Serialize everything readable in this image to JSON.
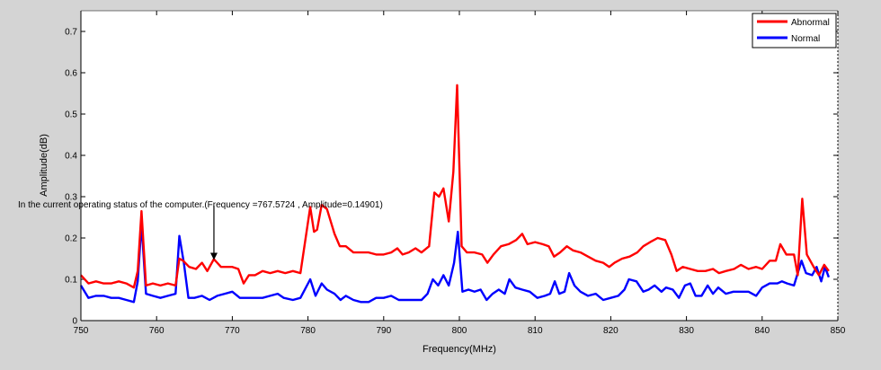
{
  "chart_data": {
    "type": "line",
    "xlabel": "Frequency(MHz)",
    "ylabel": "Amplitude(dB)",
    "xlim": [
      750,
      850
    ],
    "ylim": [
      0,
      0.75
    ],
    "xticks": [
      750,
      760,
      770,
      780,
      790,
      800,
      810,
      820,
      830,
      840,
      850
    ],
    "yticks": [
      0,
      0.1,
      0.2,
      0.3,
      0.4,
      0.5,
      0.6,
      0.7
    ],
    "legend": {
      "placement": "top-right"
    },
    "grid": false,
    "series": [
      {
        "name": "Abnormal",
        "color": "#ff0000",
        "points": [
          [
            750,
            0.11
          ],
          [
            751,
            0.09
          ],
          [
            752,
            0.095
          ],
          [
            753,
            0.09
          ],
          [
            754,
            0.09
          ],
          [
            755,
            0.095
          ],
          [
            756,
            0.09
          ],
          [
            757,
            0.08
          ],
          [
            757.5,
            0.12
          ],
          [
            758,
            0.265
          ],
          [
            758.6,
            0.085
          ],
          [
            759.5,
            0.09
          ],
          [
            760.5,
            0.085
          ],
          [
            761.5,
            0.09
          ],
          [
            762.5,
            0.085
          ],
          [
            763,
            0.15
          ],
          [
            763.5,
            0.145
          ],
          [
            764.3,
            0.13
          ],
          [
            765.2,
            0.125
          ],
          [
            766,
            0.14
          ],
          [
            766.7,
            0.12
          ],
          [
            767.57,
            0.149
          ],
          [
            768.5,
            0.13
          ],
          [
            769.3,
            0.13
          ],
          [
            770,
            0.13
          ],
          [
            770.8,
            0.125
          ],
          [
            771.5,
            0.09
          ],
          [
            772.2,
            0.11
          ],
          [
            773,
            0.11
          ],
          [
            774,
            0.12
          ],
          [
            775,
            0.115
          ],
          [
            776,
            0.12
          ],
          [
            777,
            0.115
          ],
          [
            778,
            0.12
          ],
          [
            779,
            0.115
          ],
          [
            780.3,
            0.275
          ],
          [
            780.8,
            0.215
          ],
          [
            781.2,
            0.22
          ],
          [
            781.8,
            0.28
          ],
          [
            782.5,
            0.27
          ],
          [
            783.5,
            0.21
          ],
          [
            784.2,
            0.18
          ],
          [
            785,
            0.18
          ],
          [
            786,
            0.165
          ],
          [
            787,
            0.165
          ],
          [
            788,
            0.165
          ],
          [
            789,
            0.16
          ],
          [
            790,
            0.16
          ],
          [
            791,
            0.165
          ],
          [
            791.8,
            0.175
          ],
          [
            792.5,
            0.16
          ],
          [
            793.3,
            0.165
          ],
          [
            794.2,
            0.175
          ],
          [
            795,
            0.165
          ],
          [
            796,
            0.18
          ],
          [
            796.7,
            0.31
          ],
          [
            797.3,
            0.3
          ],
          [
            797.9,
            0.32
          ],
          [
            798.6,
            0.24
          ],
          [
            799.2,
            0.36
          ],
          [
            799.7,
            0.57
          ],
          [
            800.3,
            0.18
          ],
          [
            801,
            0.165
          ],
          [
            802,
            0.165
          ],
          [
            803,
            0.16
          ],
          [
            803.7,
            0.14
          ],
          [
            804.5,
            0.16
          ],
          [
            805.5,
            0.18
          ],
          [
            806.5,
            0.185
          ],
          [
            807.5,
            0.195
          ],
          [
            808.3,
            0.21
          ],
          [
            809,
            0.185
          ],
          [
            810,
            0.19
          ],
          [
            811,
            0.185
          ],
          [
            811.8,
            0.18
          ],
          [
            812.5,
            0.155
          ],
          [
            813.3,
            0.165
          ],
          [
            814.2,
            0.18
          ],
          [
            815,
            0.17
          ],
          [
            816,
            0.165
          ],
          [
            817,
            0.155
          ],
          [
            818,
            0.145
          ],
          [
            819,
            0.14
          ],
          [
            819.8,
            0.13
          ],
          [
            820.5,
            0.14
          ],
          [
            821.5,
            0.15
          ],
          [
            822.5,
            0.155
          ],
          [
            823.5,
            0.165
          ],
          [
            824.3,
            0.18
          ],
          [
            825.2,
            0.19
          ],
          [
            826.2,
            0.2
          ],
          [
            827.2,
            0.195
          ],
          [
            828,
            0.16
          ],
          [
            828.7,
            0.12
          ],
          [
            829.5,
            0.13
          ],
          [
            830.5,
            0.125
          ],
          [
            831.5,
            0.12
          ],
          [
            832.5,
            0.12
          ],
          [
            833.5,
            0.125
          ],
          [
            834.3,
            0.115
          ],
          [
            835.2,
            0.12
          ],
          [
            836.3,
            0.125
          ],
          [
            837.2,
            0.135
          ],
          [
            838.2,
            0.125
          ],
          [
            839.2,
            0.13
          ],
          [
            840,
            0.125
          ],
          [
            841,
            0.145
          ],
          [
            841.8,
            0.145
          ],
          [
            842.4,
            0.185
          ],
          [
            843.2,
            0.16
          ],
          [
            844.2,
            0.16
          ],
          [
            844.7,
            0.11
          ],
          [
            845.3,
            0.295
          ],
          [
            845.9,
            0.16
          ],
          [
            846.8,
            0.13
          ],
          [
            847.5,
            0.11
          ],
          [
            848.2,
            0.135
          ],
          [
            848.8,
            0.12
          ]
        ]
      },
      {
        "name": "Normal",
        "color": "#0000ff",
        "points": [
          [
            750,
            0.085
          ],
          [
            751,
            0.055
          ],
          [
            752,
            0.06
          ],
          [
            753,
            0.06
          ],
          [
            754,
            0.055
          ],
          [
            755,
            0.055
          ],
          [
            756,
            0.05
          ],
          [
            757,
            0.045
          ],
          [
            757.5,
            0.095
          ],
          [
            758,
            0.235
          ],
          [
            758.6,
            0.065
          ],
          [
            759.5,
            0.06
          ],
          [
            760.5,
            0.055
          ],
          [
            761.5,
            0.06
          ],
          [
            762.5,
            0.065
          ],
          [
            763,
            0.205
          ],
          [
            763.6,
            0.14
          ],
          [
            764.2,
            0.055
          ],
          [
            765,
            0.055
          ],
          [
            766,
            0.06
          ],
          [
            767,
            0.05
          ],
          [
            768,
            0.06
          ],
          [
            769,
            0.065
          ],
          [
            770,
            0.07
          ],
          [
            771,
            0.055
          ],
          [
            772,
            0.055
          ],
          [
            773,
            0.055
          ],
          [
            774,
            0.055
          ],
          [
            775,
            0.06
          ],
          [
            776,
            0.065
          ],
          [
            776.8,
            0.055
          ],
          [
            778,
            0.05
          ],
          [
            779,
            0.055
          ],
          [
            780.3,
            0.1
          ],
          [
            781,
            0.06
          ],
          [
            781.8,
            0.09
          ],
          [
            782.5,
            0.075
          ],
          [
            783.5,
            0.065
          ],
          [
            784.3,
            0.05
          ],
          [
            785,
            0.06
          ],
          [
            786,
            0.05
          ],
          [
            787,
            0.045
          ],
          [
            788,
            0.045
          ],
          [
            789,
            0.055
          ],
          [
            790,
            0.055
          ],
          [
            791,
            0.06
          ],
          [
            792,
            0.05
          ],
          [
            793,
            0.05
          ],
          [
            794,
            0.05
          ],
          [
            795,
            0.05
          ],
          [
            795.8,
            0.065
          ],
          [
            796.5,
            0.1
          ],
          [
            797.2,
            0.085
          ],
          [
            797.9,
            0.11
          ],
          [
            798.6,
            0.085
          ],
          [
            799.3,
            0.14
          ],
          [
            799.8,
            0.215
          ],
          [
            800.4,
            0.07
          ],
          [
            801.2,
            0.075
          ],
          [
            802,
            0.07
          ],
          [
            802.8,
            0.075
          ],
          [
            803.6,
            0.05
          ],
          [
            804.4,
            0.065
          ],
          [
            805.2,
            0.075
          ],
          [
            806,
            0.065
          ],
          [
            806.6,
            0.1
          ],
          [
            807.4,
            0.08
          ],
          [
            808.3,
            0.075
          ],
          [
            809.3,
            0.07
          ],
          [
            810.3,
            0.055
          ],
          [
            811.3,
            0.06
          ],
          [
            812,
            0.065
          ],
          [
            812.6,
            0.095
          ],
          [
            813.2,
            0.065
          ],
          [
            813.9,
            0.07
          ],
          [
            814.5,
            0.115
          ],
          [
            815.2,
            0.085
          ],
          [
            816,
            0.07
          ],
          [
            817,
            0.06
          ],
          [
            818,
            0.065
          ],
          [
            819,
            0.05
          ],
          [
            820,
            0.055
          ],
          [
            821,
            0.06
          ],
          [
            821.8,
            0.075
          ],
          [
            822.4,
            0.1
          ],
          [
            823.4,
            0.095
          ],
          [
            824.3,
            0.07
          ],
          [
            825,
            0.075
          ],
          [
            825.8,
            0.085
          ],
          [
            826.7,
            0.07
          ],
          [
            827.3,
            0.08
          ],
          [
            828.2,
            0.075
          ],
          [
            829,
            0.055
          ],
          [
            829.8,
            0.085
          ],
          [
            830.5,
            0.09
          ],
          [
            831.2,
            0.06
          ],
          [
            832,
            0.06
          ],
          [
            832.8,
            0.085
          ],
          [
            833.5,
            0.065
          ],
          [
            834.2,
            0.08
          ],
          [
            835.2,
            0.065
          ],
          [
            836.2,
            0.07
          ],
          [
            837.2,
            0.07
          ],
          [
            838.2,
            0.07
          ],
          [
            839.2,
            0.06
          ],
          [
            840,
            0.08
          ],
          [
            841,
            0.09
          ],
          [
            842,
            0.09
          ],
          [
            842.6,
            0.095
          ],
          [
            843.3,
            0.09
          ],
          [
            844.2,
            0.085
          ],
          [
            845.2,
            0.145
          ],
          [
            845.8,
            0.115
          ],
          [
            846.6,
            0.11
          ],
          [
            847.2,
            0.13
          ],
          [
            847.8,
            0.095
          ],
          [
            848.3,
            0.13
          ],
          [
            848.8,
            0.105
          ]
        ]
      }
    ],
    "annotation": {
      "text": "In the current operating status of the computer.(Frequency =767.5724 ,  Amplitude=0.14901)",
      "x": 767.5724,
      "y": 0.14901
    }
  }
}
